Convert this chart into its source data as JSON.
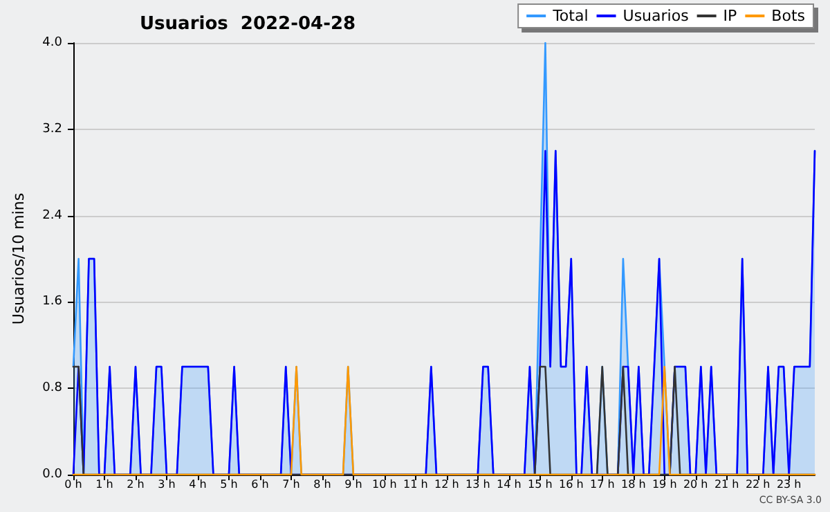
{
  "chart_data": {
    "type": "line",
    "title": "Usuarios  2022-04-28",
    "ylabel": "Usuarios/10 mins",
    "annotations": [
      "CC BY-SA 3.0"
    ],
    "x": [
      0,
      0.17,
      0.33,
      0.5,
      0.67,
      0.83,
      1,
      1.17,
      1.33,
      1.5,
      1.67,
      1.83,
      2,
      2.17,
      2.33,
      2.5,
      2.67,
      2.83,
      3,
      3.17,
      3.33,
      3.5,
      3.67,
      3.83,
      4,
      4.17,
      4.33,
      4.5,
      4.67,
      4.83,
      5,
      5.17,
      5.33,
      5.5,
      5.67,
      5.83,
      6,
      6.17,
      6.33,
      6.5,
      6.67,
      6.83,
      7,
      7.17,
      7.33,
      7.5,
      7.67,
      7.83,
      8,
      8.17,
      8.33,
      8.5,
      8.67,
      8.83,
      9,
      9.17,
      9.33,
      9.5,
      9.67,
      9.83,
      10,
      10.17,
      10.33,
      10.5,
      10.67,
      10.83,
      11,
      11.17,
      11.33,
      11.5,
      11.67,
      11.83,
      12,
      12.17,
      12.33,
      12.5,
      12.67,
      12.83,
      13,
      13.17,
      13.33,
      13.5,
      13.67,
      13.83,
      14,
      14.17,
      14.33,
      14.5,
      14.67,
      14.83,
      15,
      15.17,
      15.33,
      15.5,
      15.67,
      15.83,
      16,
      16.17,
      16.33,
      16.5,
      16.67,
      16.83,
      17,
      17.17,
      17.33,
      17.5,
      17.67,
      17.83,
      18,
      18.17,
      18.33,
      18.5,
      18.67,
      18.83,
      19,
      19.17,
      19.33,
      19.5,
      19.67,
      19.83,
      20,
      20.17,
      20.33,
      20.5,
      20.67,
      20.83,
      21,
      21.17,
      21.33,
      21.5,
      21.67,
      21.83,
      22,
      22.17,
      22.33,
      22.5,
      22.67,
      22.83,
      23,
      23.17,
      23.33,
      23.5,
      23.67,
      23.83
    ],
    "series": [
      {
        "name": "Total",
        "type": "area",
        "color": "#3399ff",
        "values": [
          1,
          2,
          0,
          2,
          2,
          0,
          0,
          1,
          0,
          0,
          0,
          0,
          1,
          0,
          0,
          0,
          1,
          1,
          0,
          0,
          0,
          1,
          1,
          1,
          1,
          1,
          1,
          0,
          0,
          0,
          0,
          1,
          0,
          0,
          0,
          0,
          0,
          0,
          0,
          0,
          0,
          1,
          0,
          1,
          0,
          0,
          0,
          0,
          0,
          0,
          0,
          0,
          0,
          1,
          0,
          0,
          0,
          0,
          0,
          0,
          0,
          0,
          0,
          0,
          0,
          0,
          0,
          0,
          0,
          1,
          0,
          0,
          0,
          0,
          0,
          0,
          0,
          0,
          0,
          1,
          1,
          0,
          0,
          0,
          0,
          0,
          0,
          0,
          1,
          0,
          2,
          4,
          1,
          3,
          1,
          1,
          2,
          0,
          0,
          1,
          0,
          0,
          1,
          0,
          0,
          0,
          2,
          1,
          0,
          1,
          0,
          0,
          1,
          2,
          1,
          0,
          1,
          1,
          1,
          0,
          0,
          1,
          0,
          1,
          0,
          0,
          0,
          0,
          0,
          2,
          0,
          0,
          0,
          0,
          1,
          0,
          1,
          1,
          0,
          1,
          1,
          1,
          1,
          3
        ]
      },
      {
        "name": "Usuarios",
        "color": "#0000ff",
        "values": [
          0,
          1,
          0,
          2,
          2,
          0,
          0,
          1,
          0,
          0,
          0,
          0,
          1,
          0,
          0,
          0,
          1,
          1,
          0,
          0,
          0,
          1,
          1,
          1,
          1,
          1,
          1,
          0,
          0,
          0,
          0,
          1,
          0,
          0,
          0,
          0,
          0,
          0,
          0,
          0,
          0,
          1,
          0,
          0,
          0,
          0,
          0,
          0,
          0,
          0,
          0,
          0,
          0,
          0,
          0,
          0,
          0,
          0,
          0,
          0,
          0,
          0,
          0,
          0,
          0,
          0,
          0,
          0,
          0,
          1,
          0,
          0,
          0,
          0,
          0,
          0,
          0,
          0,
          0,
          1,
          1,
          0,
          0,
          0,
          0,
          0,
          0,
          0,
          1,
          0,
          1,
          3,
          1,
          3,
          1,
          1,
          2,
          0,
          0,
          1,
          0,
          0,
          0,
          0,
          0,
          0,
          1,
          1,
          0,
          1,
          0,
          0,
          1,
          2,
          0,
          0,
          1,
          1,
          1,
          0,
          0,
          1,
          0,
          1,
          0,
          0,
          0,
          0,
          0,
          2,
          0,
          0,
          0,
          0,
          1,
          0,
          1,
          1,
          0,
          1,
          1,
          1,
          1,
          3
        ]
      },
      {
        "name": "IP",
        "color": "#333333",
        "values": [
          1,
          1,
          0,
          0,
          0,
          0,
          0,
          0,
          0,
          0,
          0,
          0,
          0,
          0,
          0,
          0,
          0,
          0,
          0,
          0,
          0,
          0,
          0,
          0,
          0,
          0,
          0,
          0,
          0,
          0,
          0,
          0,
          0,
          0,
          0,
          0,
          0,
          0,
          0,
          0,
          0,
          0,
          0,
          0,
          0,
          0,
          0,
          0,
          0,
          0,
          0,
          0,
          0,
          0,
          0,
          0,
          0,
          0,
          0,
          0,
          0,
          0,
          0,
          0,
          0,
          0,
          0,
          0,
          0,
          0,
          0,
          0,
          0,
          0,
          0,
          0,
          0,
          0,
          0,
          0,
          0,
          0,
          0,
          0,
          0,
          0,
          0,
          0,
          0,
          0,
          1,
          1,
          0,
          0,
          0,
          0,
          0,
          0,
          0,
          0,
          0,
          0,
          1,
          0,
          0,
          0,
          1,
          0,
          0,
          0,
          0,
          0,
          0,
          0,
          0,
          0,
          1,
          0,
          0,
          0,
          0,
          0,
          0,
          0,
          0,
          0,
          0,
          0,
          0,
          0,
          0,
          0,
          0,
          0,
          0,
          0,
          0,
          0,
          0,
          0,
          0,
          0,
          0,
          0
        ]
      },
      {
        "name": "Bots",
        "color": "#ff9900",
        "values": [
          0,
          0,
          0,
          0,
          0,
          0,
          0,
          0,
          0,
          0,
          0,
          0,
          0,
          0,
          0,
          0,
          0,
          0,
          0,
          0,
          0,
          0,
          0,
          0,
          0,
          0,
          0,
          0,
          0,
          0,
          0,
          0,
          0,
          0,
          0,
          0,
          0,
          0,
          0,
          0,
          0,
          0,
          0,
          1,
          0,
          0,
          0,
          0,
          0,
          0,
          0,
          0,
          0,
          1,
          0,
          0,
          0,
          0,
          0,
          0,
          0,
          0,
          0,
          0,
          0,
          0,
          0,
          0,
          0,
          0,
          0,
          0,
          0,
          0,
          0,
          0,
          0,
          0,
          0,
          0,
          0,
          0,
          0,
          0,
          0,
          0,
          0,
          0,
          0,
          0,
          0,
          0,
          0,
          0,
          0,
          0,
          0,
          0,
          0,
          0,
          0,
          0,
          0,
          0,
          0,
          0,
          0,
          0,
          0,
          0,
          0,
          0,
          0,
          0,
          1,
          0,
          0,
          0,
          0,
          0,
          0,
          0,
          0,
          0,
          0,
          0,
          0,
          0,
          0,
          0,
          0,
          0,
          0,
          0,
          0,
          0,
          0,
          0,
          0,
          0,
          0,
          0,
          0,
          0
        ]
      }
    ],
    "xlim": [
      0,
      23.83
    ],
    "xticks": [
      {
        "value": 0,
        "label": "0 h"
      },
      {
        "value": 1,
        "label": "1 h"
      },
      {
        "value": 2,
        "label": "2 h"
      },
      {
        "value": 3,
        "label": "3 h"
      },
      {
        "value": 4,
        "label": "4 h"
      },
      {
        "value": 5,
        "label": "5 h"
      },
      {
        "value": 6,
        "label": "6 h"
      },
      {
        "value": 7,
        "label": "7 h"
      },
      {
        "value": 8,
        "label": "8 h"
      },
      {
        "value": 9,
        "label": "9 h"
      },
      {
        "value": 10,
        "label": "10 h"
      },
      {
        "value": 11,
        "label": "11 h"
      },
      {
        "value": 12,
        "label": "12 h"
      },
      {
        "value": 13,
        "label": "13 h"
      },
      {
        "value": 14,
        "label": "14 h"
      },
      {
        "value": 15,
        "label": "15 h"
      },
      {
        "value": 16,
        "label": "16 h"
      },
      {
        "value": 17,
        "label": "17 h"
      },
      {
        "value": 18,
        "label": "18 h"
      },
      {
        "value": 19,
        "label": "19 h"
      },
      {
        "value": 20,
        "label": "20 h"
      },
      {
        "value": 21,
        "label": "21 h"
      },
      {
        "value": 22,
        "label": "22 h"
      },
      {
        "value": 23,
        "label": "23 h"
      }
    ],
    "ylim": [
      0,
      4
    ],
    "yticks": [
      {
        "value": 0,
        "label": "0.0"
      },
      {
        "value": 0.8,
        "label": "0.8"
      },
      {
        "value": 1.6,
        "label": "1.6"
      },
      {
        "value": 2.4,
        "label": "2.4"
      },
      {
        "value": 3.2,
        "label": "3.2"
      },
      {
        "value": 4,
        "label": "4.0"
      }
    ],
    "grid": "y",
    "legend": "top right",
    "marker": "none",
    "line_style": "solid"
  }
}
